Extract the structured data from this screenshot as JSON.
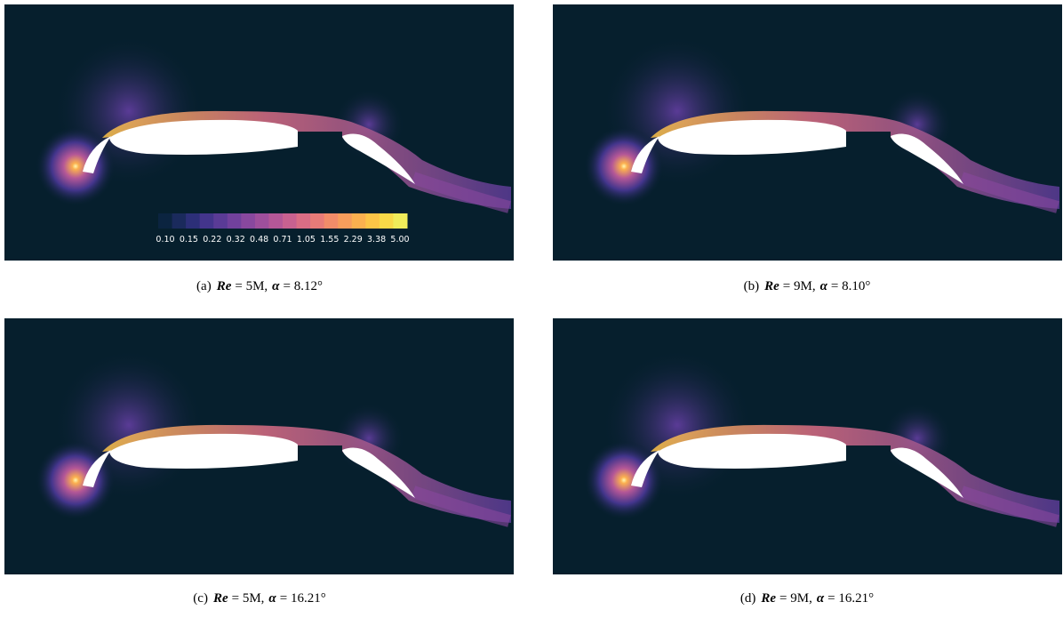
{
  "colorbar": {
    "ticks": [
      "0.10",
      "0.15",
      "0.22",
      "0.32",
      "0.48",
      "0.71",
      "1.05",
      "1.55",
      "2.29",
      "3.38",
      "5.00"
    ],
    "colors": [
      "#0b2440",
      "#1a2a5c",
      "#2c2f78",
      "#43358c",
      "#5a3b96",
      "#71419c",
      "#88489e",
      "#9e4f9c",
      "#b45797",
      "#c86190",
      "#da6d85",
      "#e87b78",
      "#f28c69",
      "#f79d5c",
      "#fbb04f",
      "#fcc447",
      "#f9d948",
      "#f0ec5a"
    ]
  },
  "panels": [
    {
      "label": "(a)",
      "re_symbol": "Re",
      "re_text": "= 5M,",
      "alpha_symbol": "α",
      "alpha_text": "= 8.12°"
    },
    {
      "label": "(b)",
      "re_symbol": "Re",
      "re_text": "= 9M,",
      "alpha_symbol": "α",
      "alpha_text": "= 8.10°"
    },
    {
      "label": "(c)",
      "re_symbol": "Re",
      "re_text": "= 5M,",
      "alpha_symbol": "α",
      "alpha_text": "= 16.21°"
    },
    {
      "label": "(d)",
      "re_symbol": "Re",
      "re_text": "= 9M,",
      "alpha_symbol": "α",
      "alpha_text": "= 16.21°"
    }
  ]
}
